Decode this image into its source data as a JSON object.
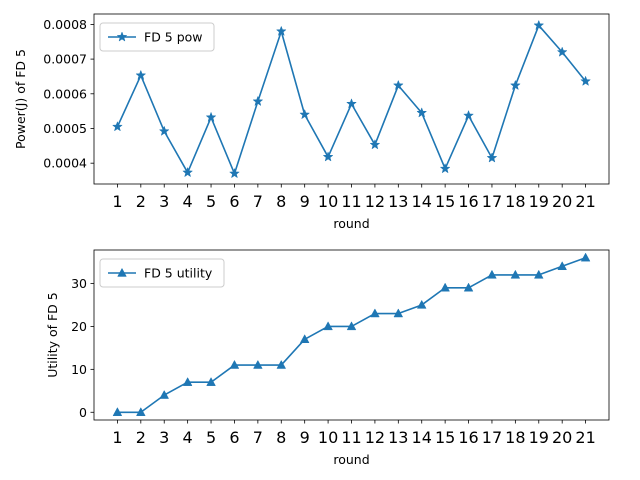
{
  "chart_data": [
    {
      "type": "line",
      "title": "",
      "xlabel": "round",
      "ylabel": "Power(J) of FD 5",
      "x": [
        1,
        2,
        3,
        4,
        5,
        6,
        7,
        8,
        9,
        10,
        11,
        12,
        13,
        14,
        15,
        16,
        17,
        18,
        19,
        20,
        21
      ],
      "x_tick_labels": [
        "1",
        "2",
        "3",
        "4",
        "5",
        "6",
        "7",
        "8",
        "9",
        "10",
        "11",
        "12",
        "13",
        "14",
        "15",
        "16",
        "17",
        "18",
        "19",
        "20",
        "21"
      ],
      "y_tick_values": [
        0.0004,
        0.0005,
        0.0006,
        0.0007,
        0.0008
      ],
      "y_tick_labels": [
        "0.0004",
        "0.0005",
        "0.0006",
        "0.0007",
        "0.0008"
      ],
      "ylim": [
        0.00034,
        0.00083
      ],
      "grid": false,
      "legend": "top-left",
      "series": [
        {
          "name": "FD 5 pow",
          "marker": "star",
          "color": "#1f77b4",
          "values": [
            0.000505,
            0.000653,
            0.000492,
            0.000373,
            0.000532,
            0.00037,
            0.000578,
            0.00078,
            0.00054,
            0.000418,
            0.000571,
            0.000453,
            0.000624,
            0.000545,
            0.000384,
            0.000537,
            0.000415,
            0.000624,
            0.000797,
            0.00072,
            0.000636
          ]
        }
      ]
    },
    {
      "type": "line",
      "title": "",
      "xlabel": "round",
      "ylabel": "Utility of FD 5",
      "x": [
        1,
        2,
        3,
        4,
        5,
        6,
        7,
        8,
        9,
        10,
        11,
        12,
        13,
        14,
        15,
        16,
        17,
        18,
        19,
        20,
        21
      ],
      "x_tick_labels": [
        "1",
        "2",
        "3",
        "4",
        "5",
        "6",
        "7",
        "8",
        "9",
        "10",
        "11",
        "12",
        "13",
        "14",
        "15",
        "16",
        "17",
        "18",
        "19",
        "20",
        "21"
      ],
      "y_tick_values": [
        0,
        10,
        20,
        30
      ],
      "y_tick_labels": [
        "0",
        "10",
        "20",
        "30"
      ],
      "ylim": [
        -1.8,
        37.8
      ],
      "grid": false,
      "legend": "top-left",
      "series": [
        {
          "name": "FD 5 utility",
          "marker": "triangle-up",
          "color": "#1f77b4",
          "values": [
            0,
            0,
            4,
            7,
            7,
            11,
            11,
            11,
            17,
            20,
            20,
            23,
            23,
            25,
            29,
            29,
            32,
            32,
            32,
            34,
            36
          ]
        }
      ]
    }
  ]
}
